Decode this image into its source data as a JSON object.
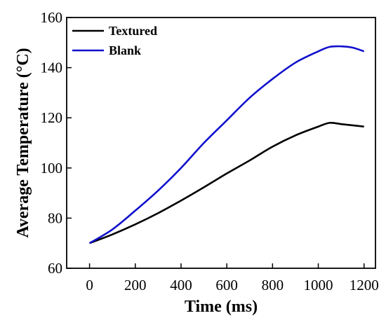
{
  "chart_data": {
    "type": "line",
    "xlabel": "Time (ms)",
    "ylabel": "Average Temperature (°C)",
    "xlim": [
      -100,
      1250
    ],
    "ylim": [
      60,
      160
    ],
    "xticks": [
      0,
      200,
      400,
      600,
      800,
      1000,
      1200
    ],
    "yticks": [
      60,
      80,
      100,
      120,
      140,
      160
    ],
    "grid": false,
    "legend_position": "top-left",
    "series": [
      {
        "name": "Textured",
        "color": "#000000",
        "x": [
          0,
          100,
          200,
          300,
          400,
          500,
          600,
          700,
          800,
          900,
          1000,
          1050,
          1100,
          1150,
          1200
        ],
        "y": [
          70,
          73.5,
          77.5,
          82,
          87,
          92.3,
          97.8,
          103,
          108.5,
          113,
          116.5,
          118,
          117.5,
          117,
          116.5
        ]
      },
      {
        "name": "Blank",
        "color": "#1010cc",
        "x": [
          0,
          100,
          200,
          300,
          400,
          500,
          600,
          700,
          800,
          900,
          1000,
          1050,
          1100,
          1150,
          1200
        ],
        "y": [
          70,
          75.5,
          83,
          91,
          100,
          110,
          119,
          128,
          135.5,
          142,
          146.5,
          148.3,
          148.5,
          148,
          146.5
        ]
      }
    ]
  }
}
